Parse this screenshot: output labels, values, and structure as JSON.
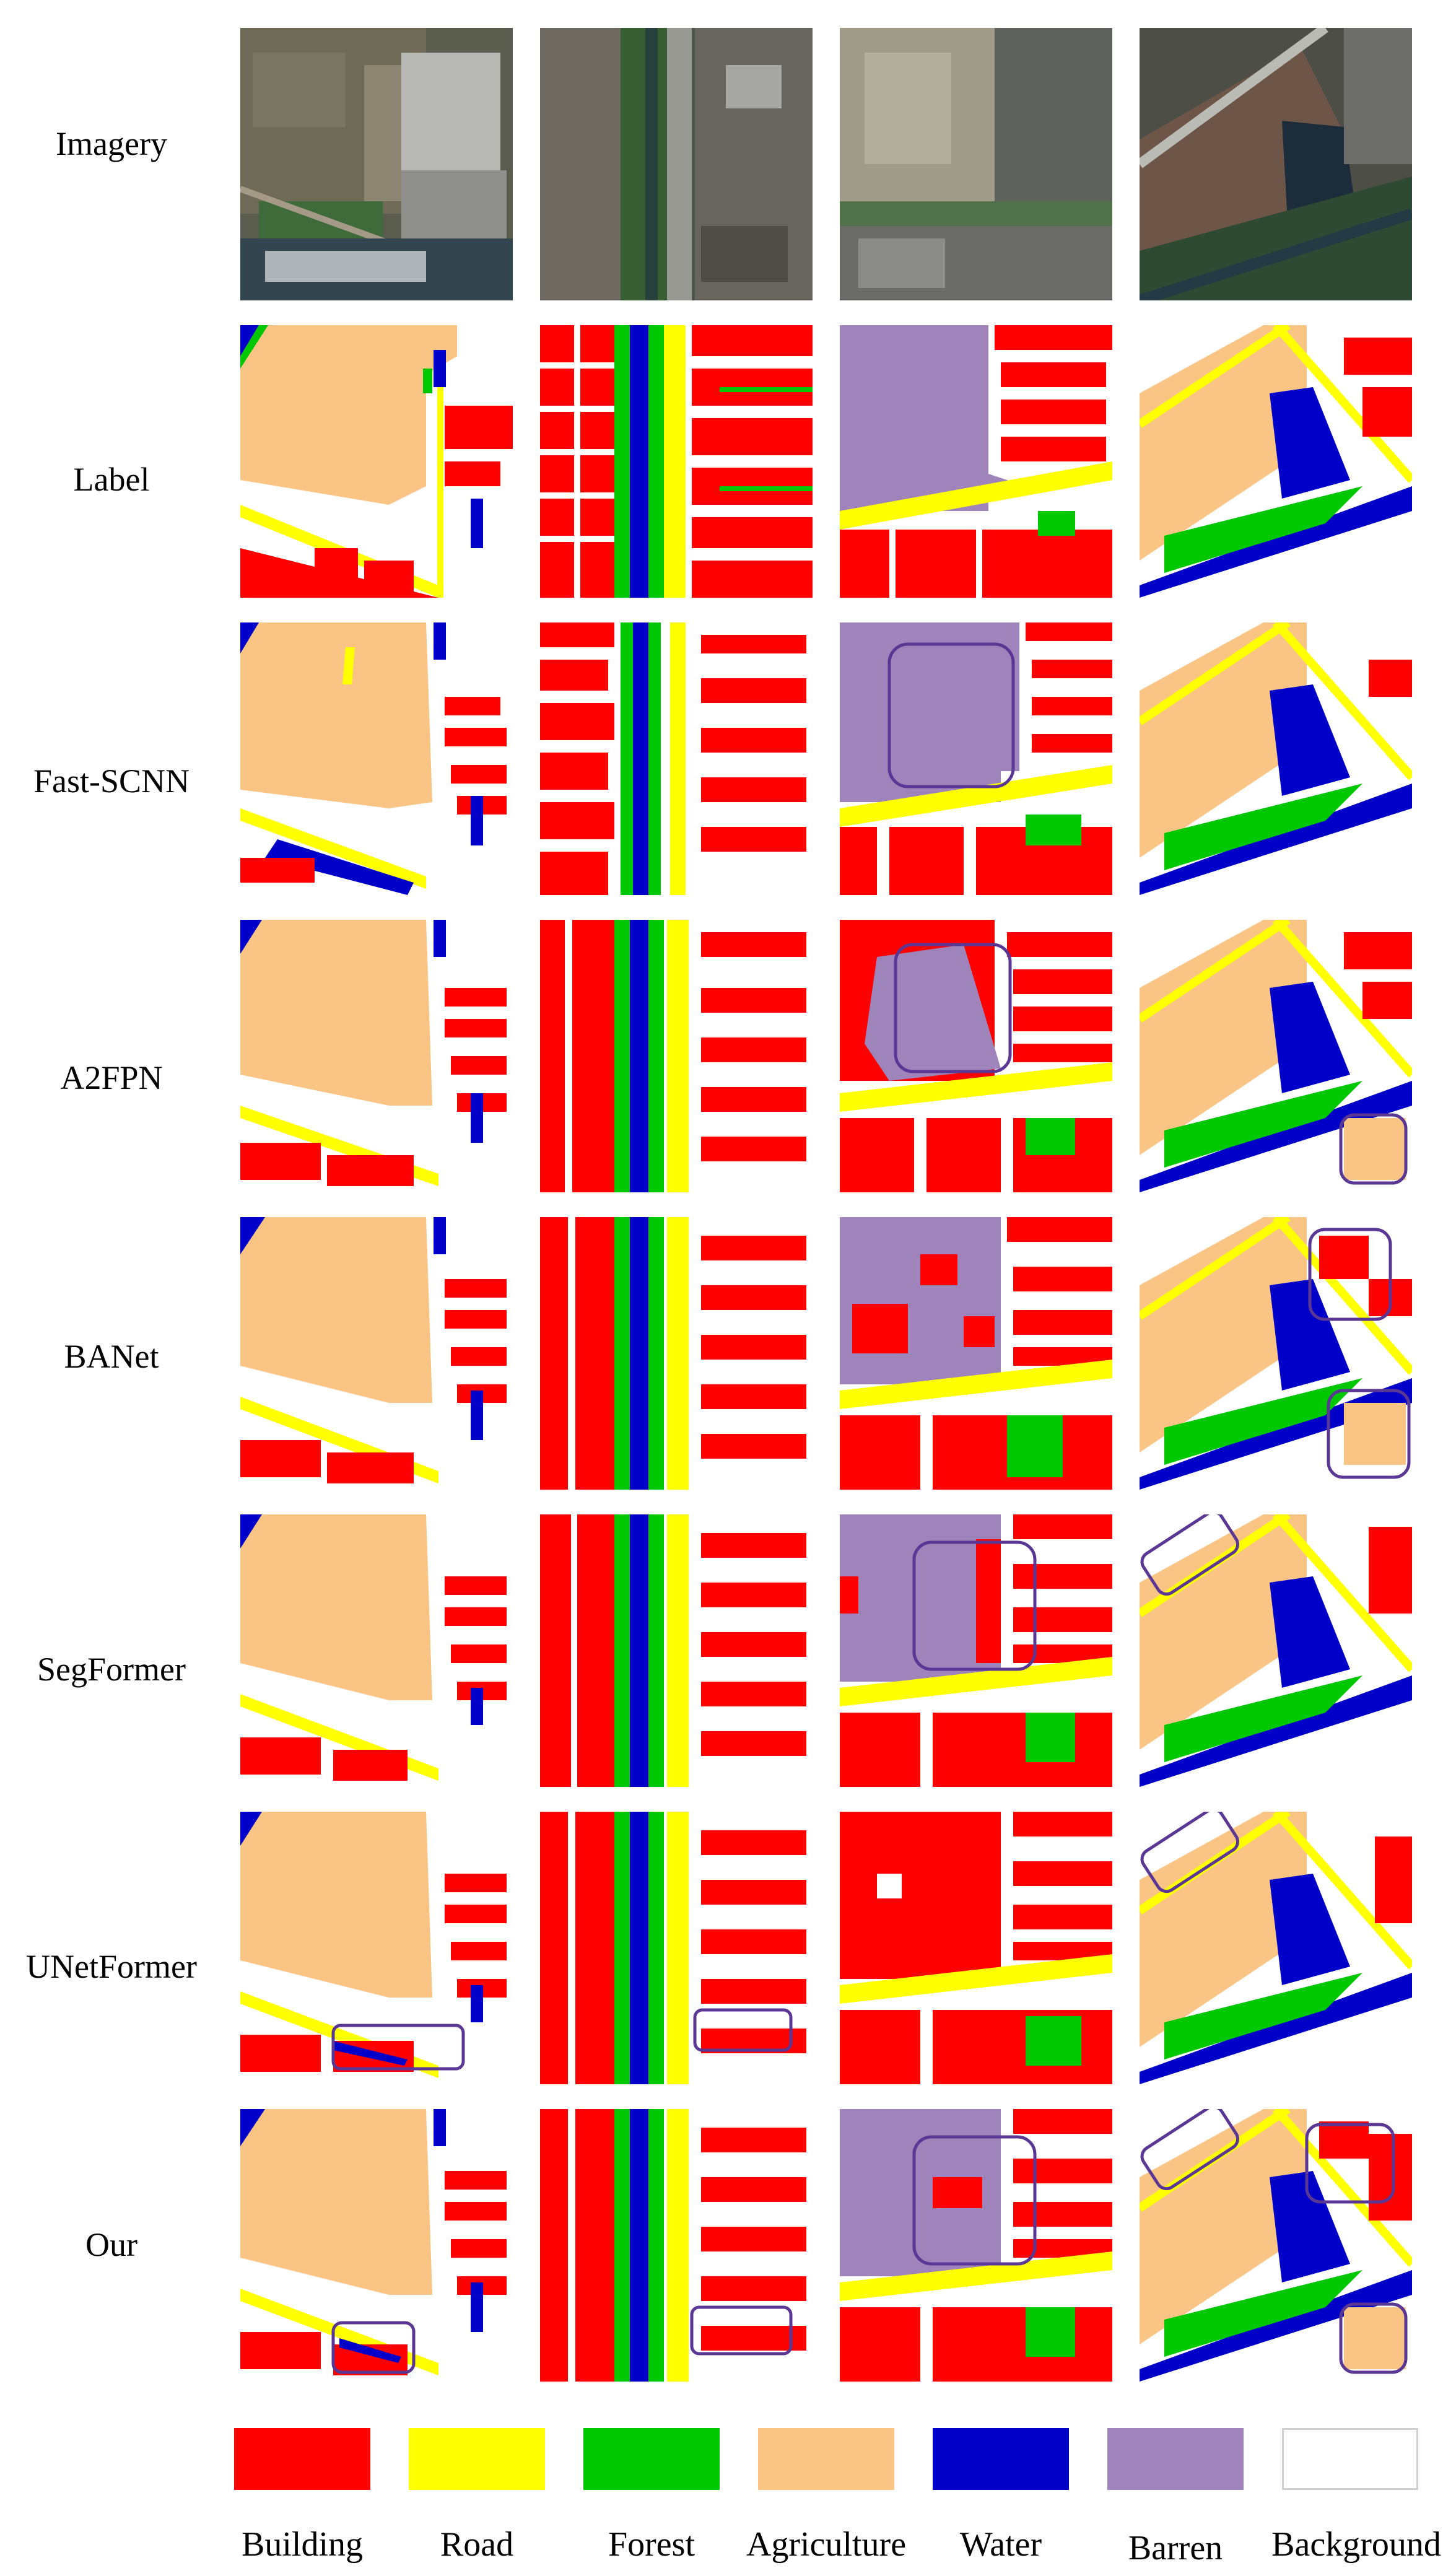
{
  "figure": {
    "rows": [
      {
        "label": "Imagery"
      },
      {
        "label": "Label"
      },
      {
        "label": "Fast-SCNN"
      },
      {
        "label": "A2FPN"
      },
      {
        "label": "BANet"
      },
      {
        "label": "SegFormer"
      },
      {
        "label": "UNetFormer"
      },
      {
        "label": "Our"
      }
    ],
    "legend": [
      {
        "label": "Building",
        "color": "#ff0000"
      },
      {
        "label": "Road",
        "color": "#ffff00"
      },
      {
        "label": "Forest",
        "color": "#00c800"
      },
      {
        "label": "Agriculture",
        "color": "#fac584"
      },
      {
        "label": "Water",
        "color": "#0000c8"
      },
      {
        "label": "Barren",
        "color": "#9e84ba"
      },
      {
        "label": "Background",
        "color": "#ffffff"
      }
    ],
    "highlight_color": "#5a3794"
  }
}
